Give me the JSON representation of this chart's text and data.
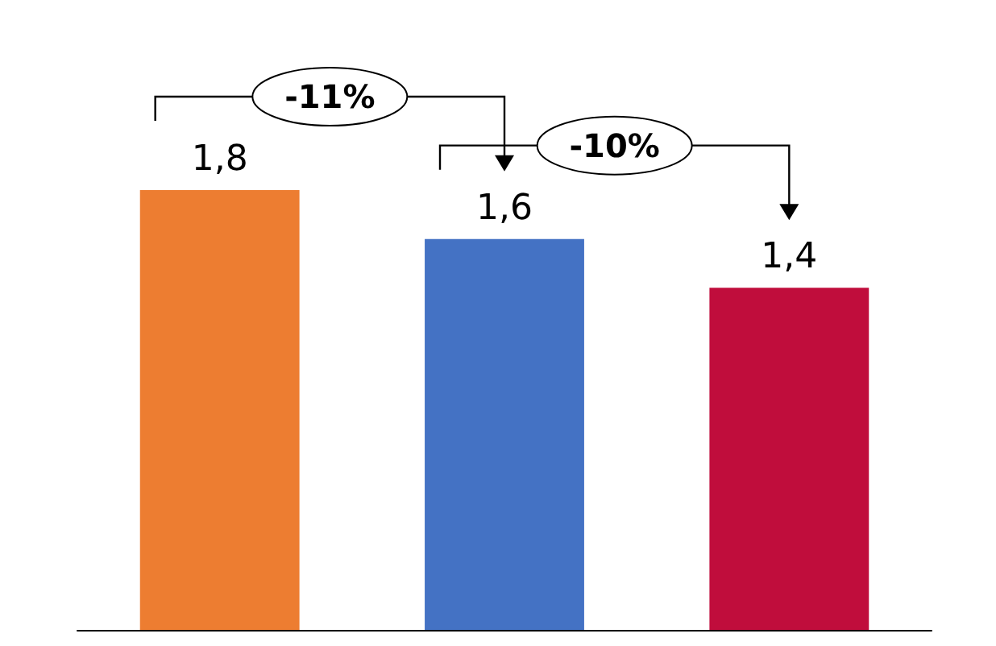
{
  "chart_data": {
    "type": "bar",
    "categories": [
      null,
      null,
      null
    ],
    "values": [
      1.8,
      1.6,
      1.4
    ],
    "colors": [
      "#ed7d31",
      "#4472c4",
      "#c00d3c"
    ],
    "value_labels": [
      "1,8",
      "1,6",
      "1,4"
    ],
    "tick_labels": false,
    "grid": false,
    "annotations": [
      "-11%",
      "-10%"
    ]
  }
}
